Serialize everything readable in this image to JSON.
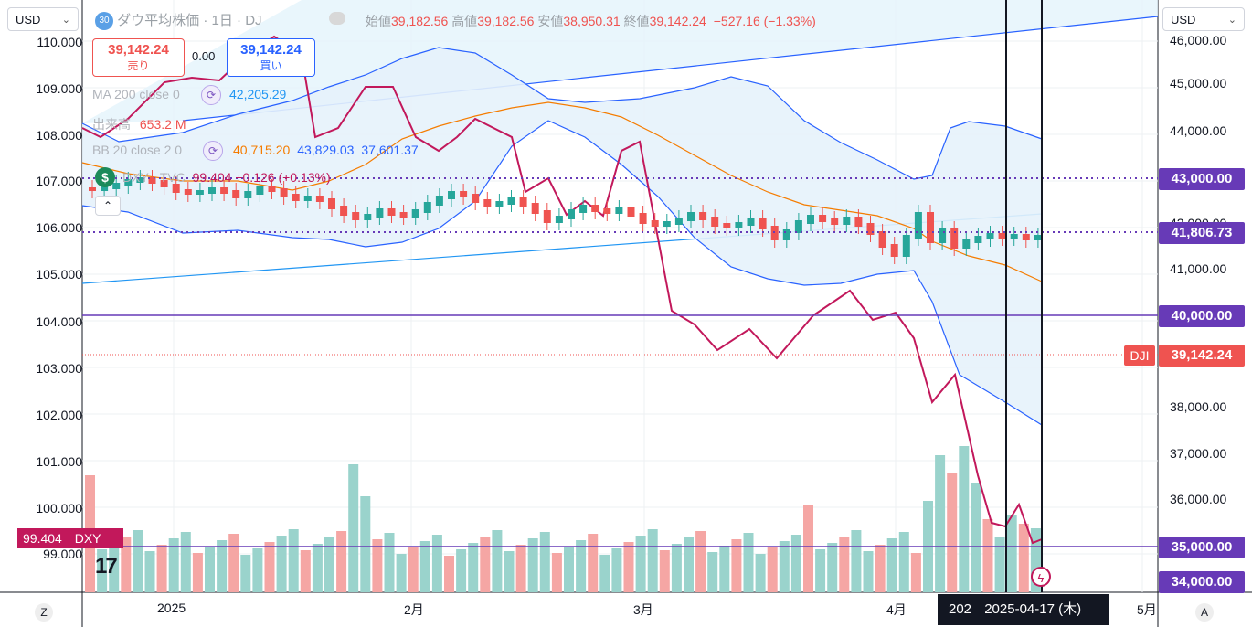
{
  "toolbar": {
    "left_currency": "USD",
    "right_currency": "USD",
    "chevron": "⌄"
  },
  "symbol": {
    "badge": "30",
    "name": "ダウ平均株価",
    "sep1": "·",
    "interval": "1日",
    "sep2": "·",
    "exchange": "DJ",
    "open_label": "始値",
    "open": "39,182.56",
    "high_label": "高値",
    "high": "39,182.56",
    "low_label": "安値",
    "low": "38,950.31",
    "close_label": "終値",
    "close": "39,142.24",
    "change": "−527.16 (−1.33%)"
  },
  "trade": {
    "sell_price": "39,142.24",
    "sell_label": "売り",
    "spread": "0.00",
    "buy_price": "39,142.24",
    "buy_label": "買い"
  },
  "indicators": {
    "ma_label": "MA 200 close 0",
    "ma_value": "42,205.29",
    "vol_label": "出来高",
    "vol_value": "653.2 M",
    "bb_label": "BB 20 close 2 0",
    "bb_basis": "40,715.20",
    "bb_upper": "43,829.03",
    "bb_lower": "37,601.37",
    "dxy_label": "DXY",
    "dxy_value": "99.404",
    "dxy_change": "+0.126 (+0.13%)"
  },
  "left_axis": [
    "110.000",
    "109.000",
    "108.000",
    "107.000",
    "106.000",
    "105.000",
    "104.000",
    "103.000",
    "102.000",
    "101.000",
    "100.000",
    "99.000"
  ],
  "right_axis": [
    "46,000.00",
    "45,000.00",
    "44,000.00",
    "42,000.00",
    "41,000.00",
    "38,000.00",
    "37,000.00",
    "36,000.00"
  ],
  "price_tags": {
    "p43000": "43,000.00",
    "p41806": "41,806.73",
    "p40000": "40,000.00",
    "dji_label": "DJI",
    "dji_value": "39,142.24",
    "p35000": "35,000.00",
    "p34000": "34,000.00"
  },
  "dxy_tag": {
    "value": "99.404",
    "label": "DXY"
  },
  "x_axis": [
    "2025",
    "2月",
    "3月",
    "4月",
    "5月"
  ],
  "crosshair_date": "2025-04-17 (木)",
  "crosshair_partial": "202",
  "bottom_left": "Z",
  "bottom_right": "A",
  "logo": "17",
  "colors": {
    "up": "#26a69a",
    "down": "#ef5350",
    "ma": "#2196f3",
    "bb": "#f57c00",
    "dxy": "#c2185b",
    "purple": "#673ab7"
  }
}
